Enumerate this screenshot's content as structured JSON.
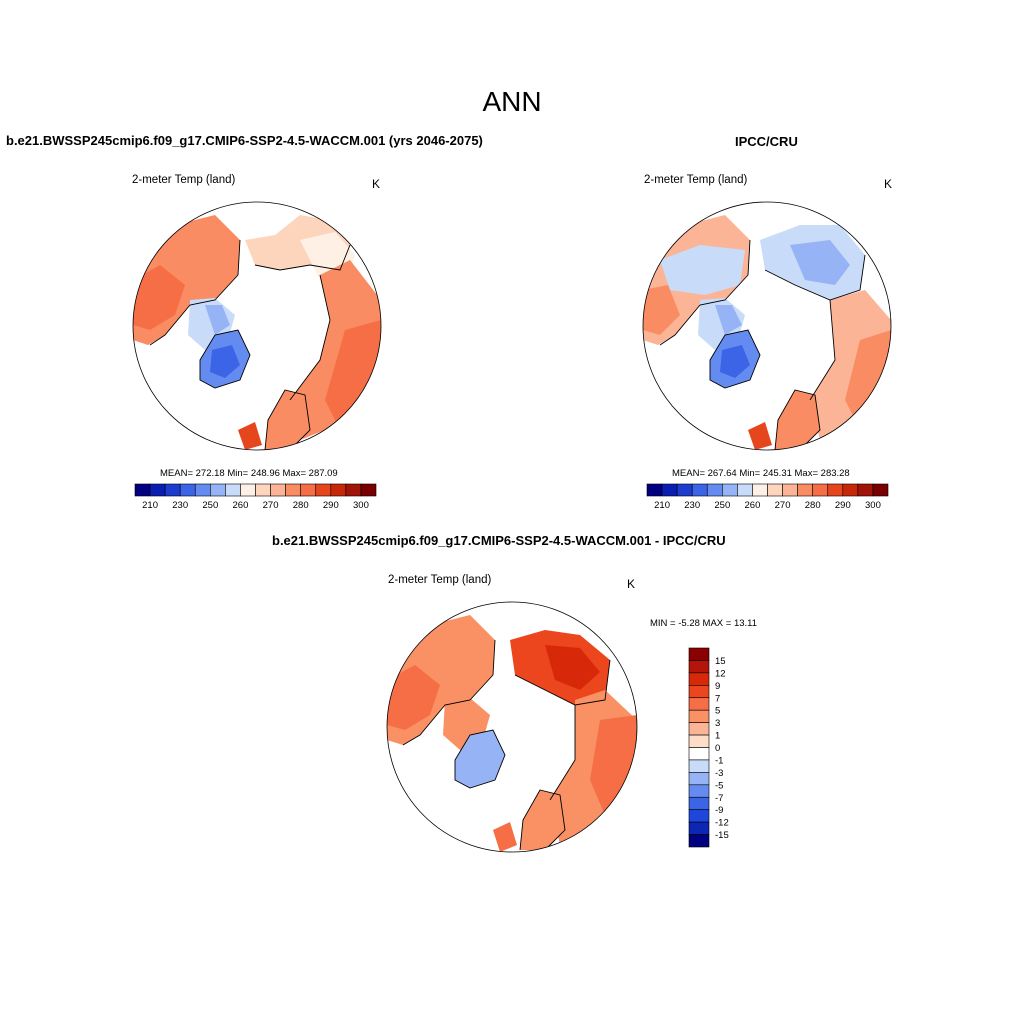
{
  "title": "ANN",
  "panels": [
    {
      "title": "b.e21.BWSSP245cmip6.f09_g17.CMIP6-SSP2-4.5-WACCM.001 (yrs 2046-2075)",
      "variable": "2-meter Temp (land)",
      "units": "K",
      "stats": "MEAN= 272.18  Min= 248.96  Max= 287.09"
    },
    {
      "title": "IPCC/CRU",
      "variable": "2-meter Temp (land)",
      "units": "K",
      "stats": "MEAN= 267.64  Min= 245.31  Max= 283.28"
    },
    {
      "title": "b.e21.BWSSP245cmip6.f09_g17.CMIP6-SSP2-4.5-WACCM.001 - IPCC/CRU",
      "variable": "2-meter Temp (land)",
      "units": "K",
      "stats": "MIN =  -5.28 MAX =  13.11"
    }
  ],
  "abs_colorbar": {
    "colors": [
      "#000080",
      "#0a1eb4",
      "#1e3ccd",
      "#3c64e6",
      "#648cf0",
      "#96b4f5",
      "#c8dcfa",
      "#fff0e6",
      "#fdd5bd",
      "#fcb496",
      "#fa8c64",
      "#f56e46",
      "#e6461e",
      "#c8280a",
      "#a0140a",
      "#780000"
    ],
    "labels": [
      "210",
      "230",
      "250",
      "260",
      "270",
      "280",
      "290",
      "300"
    ]
  },
  "diff_colorbar": {
    "colors": [
      "#8b0000",
      "#b4140a",
      "#d7280a",
      "#eb461e",
      "#f56e46",
      "#fa9164",
      "#fcb496",
      "#fddcc8",
      "#ffffff",
      "#c8dcfa",
      "#96b4f5",
      "#648cf0",
      "#3c64e6",
      "#1e46dc",
      "#0a28b4",
      "#000080"
    ],
    "labels": [
      "15",
      "12",
      "9",
      "7",
      "5",
      "3",
      "1",
      "0",
      "-1",
      "-3",
      "-5",
      "-7",
      "-9",
      "-12",
      "-15"
    ]
  },
  "map_colors": {
    "land_warm1": "#fcb496",
    "land_warm2": "#fa8c64",
    "land_warm3": "#f56e46",
    "land_pale": "#fdd5bd",
    "ice_blue1": "#c8dcfa",
    "ice_blue2": "#96b4f5",
    "ice_blue3": "#648cf0",
    "diff_warm1": "#fa9164",
    "diff_warm2": "#f56e46",
    "diff_warm3": "#eb461e",
    "diff_blue": "#96b4f5"
  }
}
